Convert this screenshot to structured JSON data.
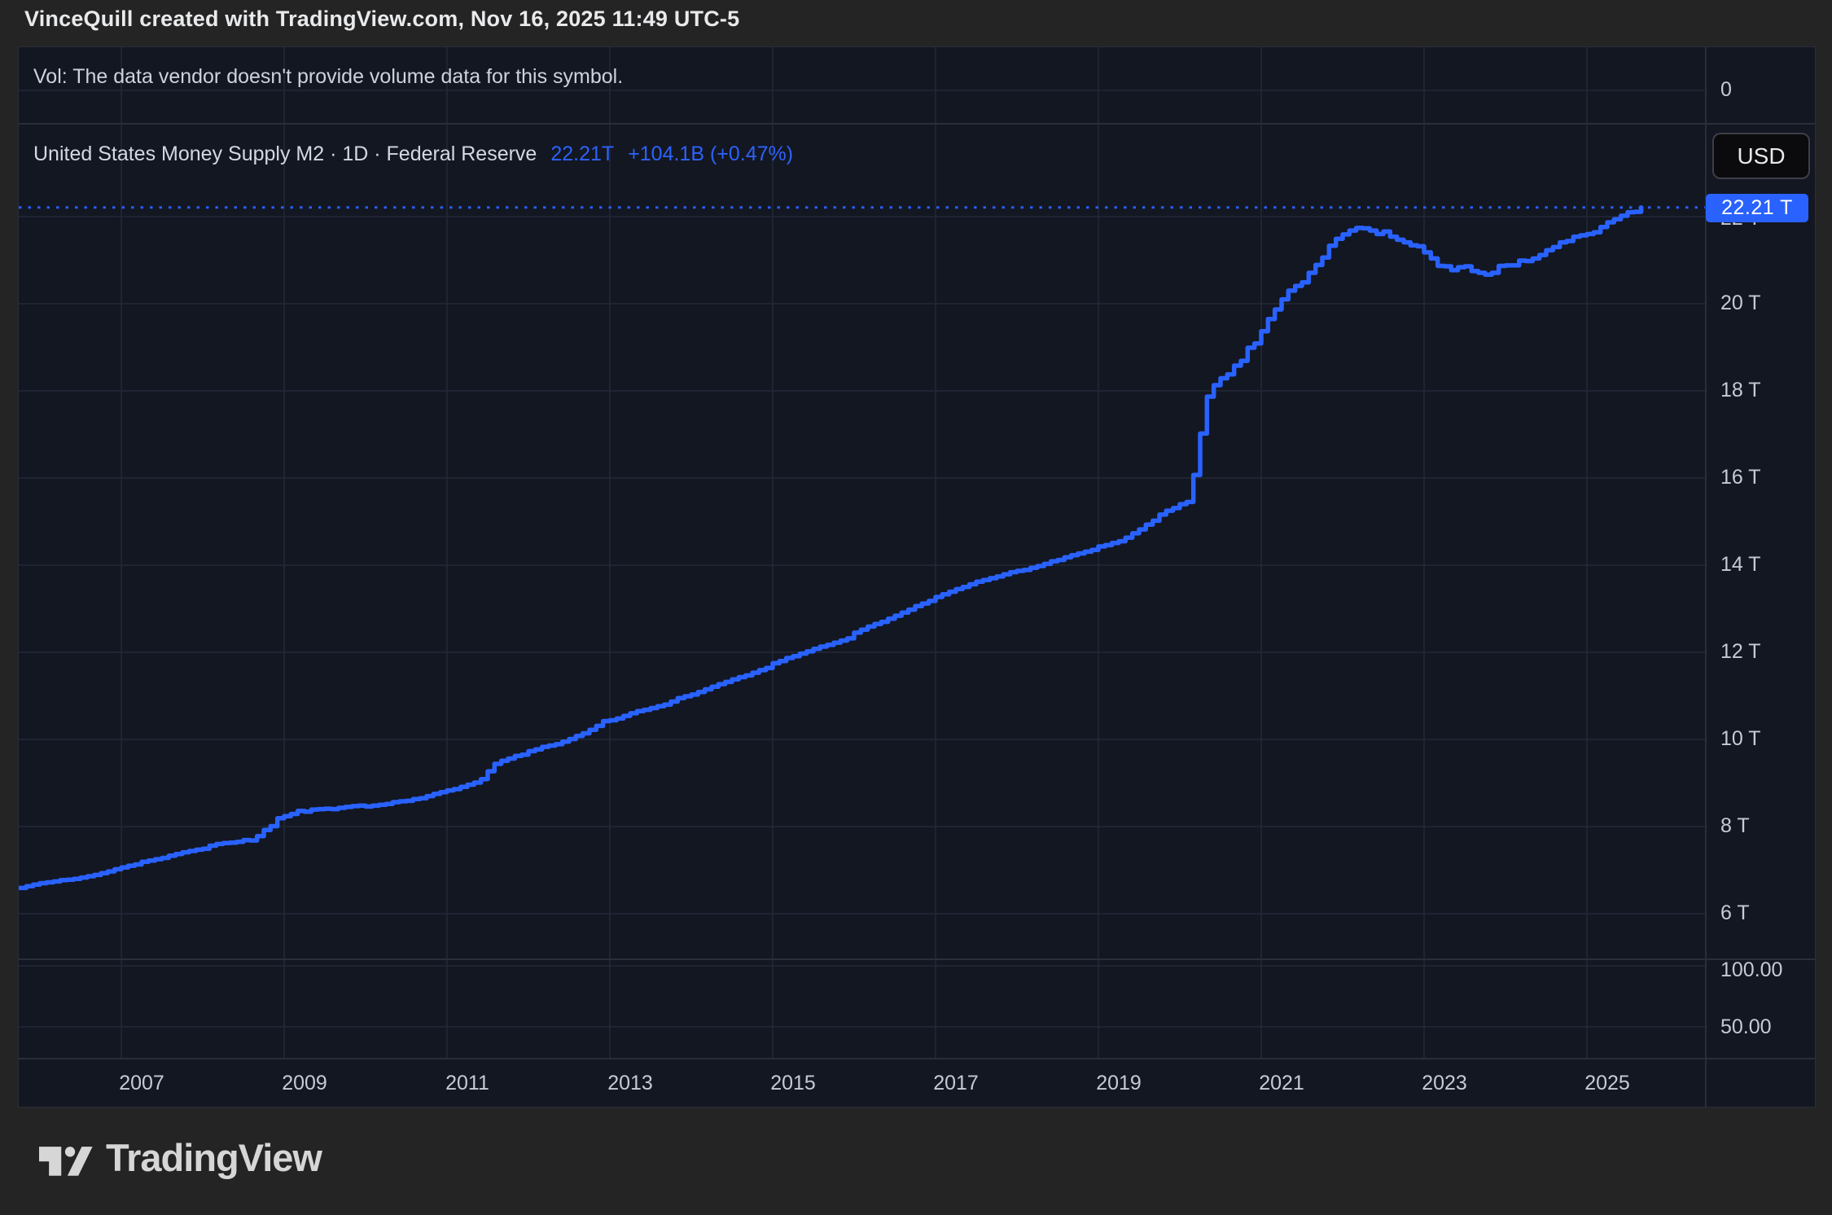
{
  "header": {
    "title": "VinceQuill created with TradingView.com, Nov 16, 2025 11:49 UTC-5"
  },
  "volume_pane": {
    "note": "Vol: The data vendor doesn't provide volume data for this symbol.",
    "tick_label": "0",
    "tick_value": 0
  },
  "legend": {
    "symbol": "United States Money Supply M2 · 1D · Federal Reserve",
    "last_value": "22.21T",
    "change": "+104.1B (+0.47%)"
  },
  "price_axis": {
    "currency": "USD",
    "last_price_label": "22.21 T",
    "hidden_tick_label": "22 T",
    "hidden_tick_value": 22,
    "ticks": [
      {
        "label": "20 T",
        "value": 20
      },
      {
        "label": "18 T",
        "value": 18
      },
      {
        "label": "16 T",
        "value": 16
      },
      {
        "label": "14 T",
        "value": 14
      },
      {
        "label": "12 T",
        "value": 12
      },
      {
        "label": "10 T",
        "value": 10
      },
      {
        "label": "8 T",
        "value": 8
      },
      {
        "label": "6 T",
        "value": 6
      }
    ]
  },
  "indicator_pane": {
    "ticks": [
      {
        "label": "100.00",
        "value": 100
      },
      {
        "label": "50.00",
        "value": 50
      }
    ]
  },
  "time_axis": {
    "ticks": [
      2007,
      2009,
      2011,
      2013,
      2015,
      2017,
      2019,
      2021,
      2023,
      2025
    ]
  },
  "footer": {
    "logo_text": "TradingView"
  },
  "colors": {
    "line_blue": "#2962ff",
    "pane_bg": "#131722",
    "outer_bg": "#242424",
    "grid": "#232837",
    "separator": "#2a2e39",
    "axis_text": "#c7cad5"
  },
  "chart_data": {
    "type": "line",
    "step": true,
    "title": "United States Money Supply M2",
    "source": "Federal Reserve",
    "interval": "1D",
    "units": "USD, trillions",
    "last_value_trillions": 22.21,
    "last_change": "+104.1B (+0.47%)",
    "x_range_years": [
      2005.75,
      2025.67
    ],
    "y_axis_ticks_trillions": [
      6,
      8,
      10,
      12,
      14,
      16,
      18,
      20,
      22
    ],
    "x_axis_ticks_years": [
      2007,
      2009,
      2011,
      2013,
      2015,
      2017,
      2019,
      2021,
      2023,
      2025
    ],
    "lower_pane_ticks": [
      100,
      50
    ],
    "volume_tick": 0,
    "legend_position": "top-left",
    "grid": true,
    "series": [
      {
        "name": "M2 Money Supply (USD trillions)",
        "start_year": 2005.75,
        "step_years": 0.0833333,
        "values": [
          6.59,
          6.63,
          6.67,
          6.7,
          6.72,
          6.74,
          6.77,
          6.78,
          6.8,
          6.83,
          6.86,
          6.89,
          6.93,
          6.97,
          7.02,
          7.06,
          7.1,
          7.13,
          7.19,
          7.22,
          7.25,
          7.28,
          7.33,
          7.37,
          7.41,
          7.44,
          7.47,
          7.49,
          7.56,
          7.6,
          7.62,
          7.63,
          7.65,
          7.69,
          7.68,
          7.78,
          7.92,
          8.01,
          8.19,
          8.24,
          8.29,
          8.36,
          8.34,
          8.39,
          8.4,
          8.41,
          8.4,
          8.43,
          8.45,
          8.47,
          8.48,
          8.46,
          8.48,
          8.5,
          8.52,
          8.56,
          8.58,
          8.59,
          8.63,
          8.65,
          8.7,
          8.75,
          8.79,
          8.83,
          8.86,
          8.91,
          8.96,
          9.01,
          9.09,
          9.27,
          9.44,
          9.51,
          9.56,
          9.62,
          9.65,
          9.73,
          9.77,
          9.83,
          9.86,
          9.89,
          9.95,
          10.01,
          10.08,
          10.14,
          10.22,
          10.31,
          10.42,
          10.44,
          10.48,
          10.54,
          10.6,
          10.65,
          10.68,
          10.72,
          10.76,
          10.8,
          10.87,
          10.95,
          10.99,
          11.03,
          11.09,
          11.15,
          11.21,
          11.27,
          11.32,
          11.38,
          11.43,
          11.47,
          11.53,
          11.59,
          11.64,
          11.75,
          11.8,
          11.87,
          11.91,
          11.97,
          12.02,
          12.08,
          12.13,
          12.17,
          12.22,
          12.27,
          12.32,
          12.45,
          12.52,
          12.59,
          12.65,
          12.7,
          12.77,
          12.84,
          12.91,
          12.98,
          13.06,
          13.12,
          13.18,
          13.27,
          13.33,
          13.39,
          13.45,
          13.5,
          13.56,
          13.62,
          13.66,
          13.7,
          13.74,
          13.79,
          13.84,
          13.87,
          13.89,
          13.94,
          13.98,
          14.03,
          14.09,
          14.12,
          14.18,
          14.23,
          14.27,
          14.31,
          14.35,
          14.43,
          14.46,
          14.51,
          14.55,
          14.63,
          14.73,
          14.82,
          14.93,
          15.02,
          15.16,
          15.25,
          15.31,
          15.4,
          15.45,
          16.07,
          17.02,
          17.87,
          18.13,
          18.29,
          18.38,
          18.58,
          18.69,
          18.99,
          19.09,
          19.37,
          19.65,
          19.87,
          20.1,
          20.3,
          20.41,
          20.49,
          20.71,
          20.89,
          21.06,
          21.33,
          21.49,
          21.59,
          21.68,
          21.74,
          21.73,
          21.68,
          21.6,
          21.66,
          21.54,
          21.47,
          21.41,
          21.34,
          21.32,
          21.18,
          21.04,
          20.87,
          20.86,
          20.77,
          20.84,
          20.86,
          20.75,
          20.71,
          20.67,
          20.71,
          20.87,
          20.88,
          20.88,
          20.99,
          20.98,
          21.04,
          21.12,
          21.23,
          21.3,
          21.41,
          21.44,
          21.54,
          21.57,
          21.6,
          21.64,
          21.76,
          21.87,
          21.94,
          22.02,
          22.1,
          22.11,
          22.21
        ]
      }
    ]
  }
}
